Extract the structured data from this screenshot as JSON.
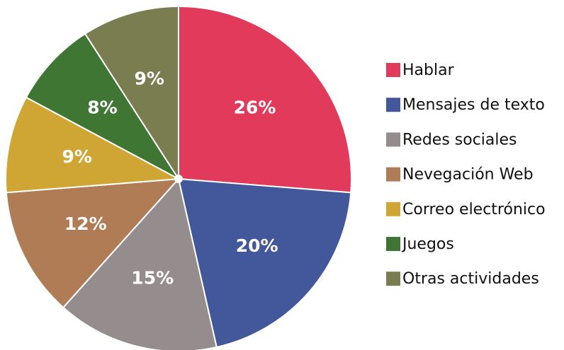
{
  "chart_data": {
    "type": "pie",
    "categories": [
      "Hablar",
      "Mensajes de texto",
      "Redes sociales",
      "Nevegación Web",
      "Correo electrónico",
      "Juegos",
      "Otras actividades"
    ],
    "values": [
      26,
      20,
      15,
      12,
      9,
      8,
      9
    ],
    "value_labels": [
      "26%",
      "20%",
      "15%",
      "12%",
      "9%",
      "8%",
      "9%"
    ],
    "colors": [
      "#e23a5a",
      "#42589a",
      "#958d8d",
      "#b07c56",
      "#cfa534",
      "#3f7634",
      "#7a7d4f"
    ],
    "legend": "right"
  }
}
